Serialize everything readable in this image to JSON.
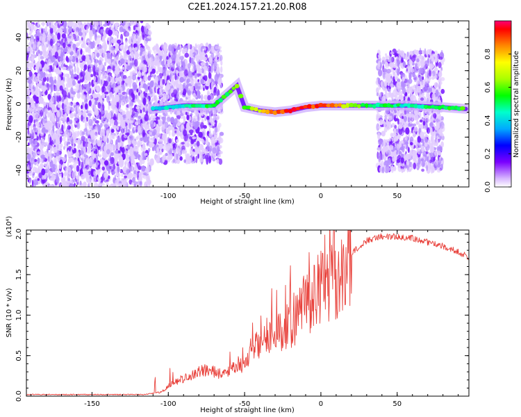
{
  "figure_title": "C2E1.2024.157.21.20.R08",
  "chart_data": [
    {
      "type": "heatmap",
      "xlabel": "Height of straight line (km)",
      "ylabel": "Frequency (Hz)",
      "xlim": [
        -193,
        97
      ],
      "ylim": [
        -50,
        50
      ],
      "xticks": [
        -150,
        -100,
        -50,
        0,
        50
      ],
      "yticks": [
        -40,
        -20,
        0,
        20,
        40
      ],
      "colorbar": {
        "label": "Normalized spectral amplitude",
        "range": [
          0.0,
          1.0
        ],
        "ticks": [
          0.0,
          0.2,
          0.4,
          0.6,
          0.8
        ],
        "colormap": [
          "#b0b0b0",
          "#7b00ff",
          "#0000ff",
          "#00aaff",
          "#00ffcc",
          "#00ff00",
          "#aaff00",
          "#ffff00",
          "#ff8800",
          "#ff0000",
          "#ff0077"
        ]
      },
      "regions": [
        {
          "x_range": [
            -193,
            -112
          ],
          "freq_range": [
            -50,
            50
          ],
          "amplitude": "low (0.05-0.25)",
          "pattern": "scattered"
        },
        {
          "x_range": [
            -112,
            -65
          ],
          "freq_range": [
            -35,
            35
          ],
          "amplitude": "low (0.05-0.25)",
          "pattern": "scattered"
        },
        {
          "x_range": [
            37,
            80
          ],
          "freq_range": [
            -40,
            32
          ],
          "amplitude": "low (0.05-0.25)",
          "pattern": "scattered"
        }
      ],
      "ridge": [
        {
          "x": -110,
          "freq": -3,
          "amplitude": 0.35
        },
        {
          "x": -90,
          "freq": -1,
          "amplitude": 0.4
        },
        {
          "x": -70,
          "freq": -1,
          "amplitude": 0.45
        },
        {
          "x": -55,
          "freq": 11,
          "amplitude": 0.55
        },
        {
          "x": -50,
          "freq": -2,
          "amplitude": 0.5
        },
        {
          "x": -40,
          "freq": -4,
          "amplitude": 0.7
        },
        {
          "x": -30,
          "freq": -5,
          "amplitude": 0.85
        },
        {
          "x": -20,
          "freq": -4,
          "amplitude": 0.9
        },
        {
          "x": -10,
          "freq": -2,
          "amplitude": 0.9
        },
        {
          "x": 0,
          "freq": -1,
          "amplitude": 0.85
        },
        {
          "x": 10,
          "freq": -1,
          "amplitude": 0.8
        },
        {
          "x": 20,
          "freq": -1,
          "amplitude": 0.55
        },
        {
          "x": 30,
          "freq": -1,
          "amplitude": 0.5
        },
        {
          "x": 40,
          "freq": -1,
          "amplitude": 0.45
        },
        {
          "x": 60,
          "freq": -1,
          "amplitude": 0.4
        },
        {
          "x": 80,
          "freq": -2,
          "amplitude": 0.45
        },
        {
          "x": 95,
          "freq": -3,
          "amplitude": 0.5
        }
      ]
    },
    {
      "type": "line",
      "xlabel": "Height of straight line (km)",
      "ylabel": "SNR (10 * v/v)",
      "scale_label": "(x10⁴)",
      "xlim": [
        -193,
        97
      ],
      "ylim": [
        0.0,
        2.05
      ],
      "xticks": [
        -150,
        -100,
        -50,
        0,
        50
      ],
      "yticks": [
        0.0,
        0.5,
        1.0,
        1.5,
        2.0
      ],
      "yticklabels": [
        "0.0",
        "0.5",
        "1.0",
        "1.5",
        "2.0"
      ],
      "color": "#e8403a",
      "series": [
        {
          "x": [
            -193,
            -150,
            -115,
            -105,
            -100,
            -95,
            -90,
            -85,
            -80,
            -75,
            -70,
            -65,
            -60,
            -55,
            -50,
            -45,
            -40,
            -35,
            -30,
            -25,
            -20,
            -15,
            -10,
            -5,
            0,
            5,
            10,
            15,
            20,
            25,
            30,
            40,
            50,
            60,
            70,
            80,
            90,
            97
          ],
          "values": [
            0.02,
            0.02,
            0.02,
            0.05,
            0.12,
            0.18,
            0.22,
            0.25,
            0.3,
            0.33,
            0.3,
            0.28,
            0.32,
            0.35,
            0.4,
            0.55,
            0.7,
            0.75,
            0.8,
            0.85,
            0.9,
            1.0,
            1.1,
            1.25,
            1.35,
            1.4,
            1.45,
            1.55,
            1.75,
            1.85,
            1.92,
            1.97,
            1.97,
            1.95,
            1.9,
            1.85,
            1.78,
            1.72
          ]
        }
      ]
    }
  ]
}
